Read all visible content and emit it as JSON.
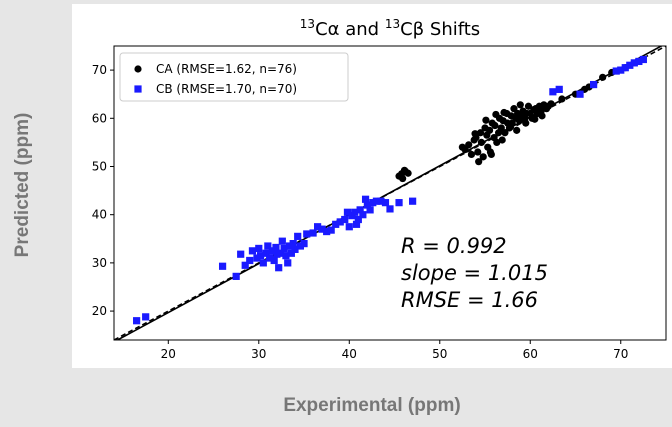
{
  "outer_labels": {
    "ylabel": "Predicted (ppm)",
    "xlabel": "Experimental (ppm)"
  },
  "chart_data": {
    "type": "scatter",
    "title_parts": {
      "sup1": "13",
      "text1": "Cα and ",
      "sup2": "13",
      "text2": "Cβ Shifts"
    },
    "xlim": [
      14,
      75
    ],
    "ylim": [
      14,
      75
    ],
    "x_ticks": [
      20,
      30,
      40,
      50,
      60,
      70
    ],
    "y_ticks": [
      20,
      30,
      40,
      50,
      60,
      70
    ],
    "grid": false,
    "legend_position": "upper-left",
    "fit_line": {
      "slope": 1.015,
      "intercept": -0.6,
      "style": "solid",
      "color": "#000000"
    },
    "identity_line": {
      "slope": 1.0,
      "intercept": 0,
      "style": "dashed",
      "color": "#000000"
    },
    "annotations": [
      "R = 0.992",
      "slope = 1.015",
      "RMSE = 1.66"
    ],
    "series": [
      {
        "name": "CA (RMSE=1.62, n=76)",
        "marker": "circle",
        "color": "#000000",
        "points": [
          [
            45.5,
            48
          ],
          [
            45.8,
            48.5
          ],
          [
            46.2,
            49
          ],
          [
            46.5,
            48.6
          ],
          [
            45.9,
            47.5
          ],
          [
            46.1,
            49.2
          ],
          [
            52.5,
            54
          ],
          [
            52.8,
            53.5
          ],
          [
            53.2,
            54.5
          ],
          [
            53.5,
            52.5
          ],
          [
            53.8,
            55.5
          ],
          [
            54.0,
            56
          ],
          [
            54.2,
            53
          ],
          [
            54.5,
            57
          ],
          [
            54.6,
            55
          ],
          [
            54.8,
            52
          ],
          [
            55.0,
            58
          ],
          [
            55.2,
            56.5
          ],
          [
            55.3,
            54
          ],
          [
            55.5,
            57.5
          ],
          [
            55.6,
            53
          ],
          [
            55.8,
            59
          ],
          [
            56.0,
            56
          ],
          [
            56.1,
            58.5
          ],
          [
            56.3,
            55
          ],
          [
            56.5,
            57
          ],
          [
            56.6,
            60
          ],
          [
            56.8,
            58
          ],
          [
            57.0,
            59.5
          ],
          [
            57.2,
            57
          ],
          [
            57.4,
            61
          ],
          [
            57.5,
            59
          ],
          [
            57.7,
            58
          ],
          [
            57.9,
            60.5
          ],
          [
            58.0,
            59
          ],
          [
            58.2,
            62
          ],
          [
            58.4,
            60
          ],
          [
            58.6,
            61
          ],
          [
            58.8,
            59.5
          ],
          [
            59.0,
            60.5
          ],
          [
            59.2,
            61.5
          ],
          [
            59.4,
            60
          ],
          [
            59.6,
            61
          ],
          [
            59.8,
            62.5
          ],
          [
            60.0,
            61
          ],
          [
            60.2,
            60
          ],
          [
            60.4,
            61.8
          ],
          [
            60.6,
            62
          ],
          [
            60.8,
            61
          ],
          [
            61.0,
            62.5
          ],
          [
            61.2,
            61.5
          ],
          [
            61.5,
            62.8
          ],
          [
            61.8,
            62
          ],
          [
            62.0,
            62.5
          ],
          [
            62.3,
            63
          ],
          [
            54.3,
            51
          ],
          [
            55.7,
            52.5
          ],
          [
            56.9,
            55.5
          ],
          [
            57.8,
            58.2
          ],
          [
            58.5,
            57.5
          ],
          [
            59.5,
            59
          ],
          [
            60.5,
            59.8
          ],
          [
            61.3,
            60.5
          ],
          [
            56.2,
            60.8
          ],
          [
            55.1,
            59.6
          ],
          [
            53.9,
            56.8
          ],
          [
            57.1,
            61.2
          ],
          [
            58.9,
            62.8
          ],
          [
            63.5,
            64
          ],
          [
            65.0,
            65
          ],
          [
            66.0,
            66
          ],
          [
            66.5,
            66.5
          ],
          [
            67.0,
            67
          ],
          [
            68.0,
            68.5
          ],
          [
            69.0,
            69.5
          ],
          [
            70.5,
            70.5
          ]
        ]
      },
      {
        "name": "CB (RMSE=1.70, n=70)",
        "marker": "square",
        "color": "#1a1aff",
        "points": [
          [
            16.5,
            18
          ],
          [
            17.5,
            18.8
          ],
          [
            26.0,
            29.3
          ],
          [
            27.5,
            27.2
          ],
          [
            28.0,
            31.8
          ],
          [
            28.5,
            29.5
          ],
          [
            29.0,
            30.5
          ],
          [
            29.3,
            32.5
          ],
          [
            29.8,
            31
          ],
          [
            30.0,
            33
          ],
          [
            30.2,
            31.5
          ],
          [
            30.5,
            30
          ],
          [
            30.8,
            32
          ],
          [
            31.0,
            33.5
          ],
          [
            31.2,
            31
          ],
          [
            31.5,
            32.5
          ],
          [
            31.7,
            30.5
          ],
          [
            31.9,
            33.2
          ],
          [
            32.0,
            31.8
          ],
          [
            32.2,
            29
          ],
          [
            32.4,
            32
          ],
          [
            32.6,
            34.5
          ],
          [
            32.8,
            33
          ],
          [
            33.0,
            31.5
          ],
          [
            33.2,
            30
          ],
          [
            33.4,
            33.5
          ],
          [
            33.6,
            32
          ],
          [
            33.8,
            34
          ],
          [
            34.0,
            32.8
          ],
          [
            34.3,
            35.5
          ],
          [
            34.6,
            33.5
          ],
          [
            35.0,
            34
          ],
          [
            35.3,
            36
          ],
          [
            36.0,
            36.2
          ],
          [
            36.5,
            37.5
          ],
          [
            37.0,
            37
          ],
          [
            37.5,
            36.5
          ],
          [
            38.0,
            36.8
          ],
          [
            38.5,
            38
          ],
          [
            39.0,
            38.5
          ],
          [
            39.5,
            39
          ],
          [
            39.8,
            40.5
          ],
          [
            40.0,
            37.5
          ],
          [
            40.3,
            39.8
          ],
          [
            40.6,
            40.5
          ],
          [
            40.8,
            38
          ],
          [
            41.0,
            39
          ],
          [
            41.2,
            41
          ],
          [
            41.5,
            40
          ],
          [
            41.8,
            43.2
          ],
          [
            42.0,
            42
          ],
          [
            42.3,
            41
          ],
          [
            42.6,
            42.5
          ],
          [
            43.0,
            42.8
          ],
          [
            43.5,
            42.8
          ],
          [
            44.0,
            42.5
          ],
          [
            44.5,
            41.2
          ],
          [
            45.5,
            42.5
          ],
          [
            47.0,
            42.8
          ],
          [
            62.5,
            65.5
          ],
          [
            63.2,
            66
          ],
          [
            65.5,
            65
          ],
          [
            67.0,
            67
          ],
          [
            69.5,
            69.8
          ],
          [
            70.0,
            70
          ],
          [
            70.5,
            70.5
          ],
          [
            71.0,
            71
          ],
          [
            71.5,
            71.5
          ],
          [
            72.0,
            71.8
          ],
          [
            72.5,
            72.2
          ]
        ]
      }
    ]
  }
}
